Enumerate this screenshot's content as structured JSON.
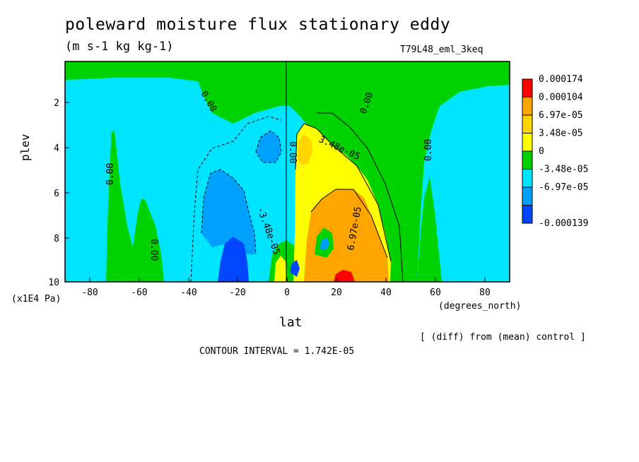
{
  "chart_data": {
    "type": "contour",
    "title": "poleward moisture flux stationary eddy",
    "units": "(m s-1 kg kg-1)",
    "run_label": "T79L48_eml_3keq",
    "xlabel": "lat",
    "x_unit_label": "(degrees_north)",
    "ylabel": "plev",
    "y_unit_label": "(x1E4 Pa)",
    "x_ticks": [
      "-80",
      "-60",
      "-40",
      "-20",
      "0",
      "20",
      "40",
      "60",
      "80"
    ],
    "y_ticks": [
      "2",
      "4",
      "6",
      "8",
      "10"
    ],
    "xlim": [
      -90,
      90
    ],
    "ylim": [
      10,
      0.2
    ],
    "note": "[ (diff) from (mean) control ]",
    "contour_interval_label": "CONTOUR INTERVAL = 1.742E-05",
    "contour_labels": [
      "0.00",
      "0.00",
      "0.00",
      "0.00",
      "0.00",
      "0.00",
      "3.48e-05",
      "6.97e-05",
      "-3.48e-05"
    ],
    "colorbar": {
      "labels": [
        "0.000174",
        "0.000104",
        "6.97e-05",
        "3.48e-05",
        "0",
        "-3.48e-05",
        "-6.97e-05",
        "-0.000139"
      ],
      "colors": [
        "#ff0000",
        "#ffa500",
        "#ffd400",
        "#ffff00",
        "#00d200",
        "#00e5ff",
        "#00a0ff",
        "#0046ff"
      ]
    }
  }
}
